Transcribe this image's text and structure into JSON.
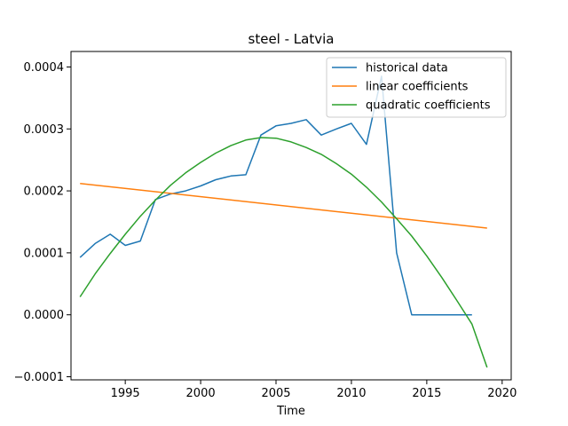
{
  "chart_data": {
    "type": "line",
    "title": "steel - Latvia",
    "xlabel": "Time",
    "ylabel": "",
    "xlim": [
      1991.4,
      2020.6
    ],
    "ylim": [
      -0.000105,
      0.000425
    ],
    "xticks": [
      1995,
      2000,
      2005,
      2010,
      2015,
      2020
    ],
    "yticks": [
      -0.0001,
      0.0,
      0.0001,
      0.0002,
      0.0003,
      0.0004
    ],
    "ytick_labels": [
      "−0.0001",
      "0.0000",
      "0.0001",
      "0.0002",
      "0.0003",
      "0.0004"
    ],
    "legend_position": "top-right",
    "grid": false,
    "series": [
      {
        "name": "historical data",
        "color": "#1f77b4",
        "x": [
          1992,
          1993,
          1994,
          1995,
          1996,
          1997,
          1998,
          1999,
          2000,
          2001,
          2002,
          2003,
          2004,
          2005,
          2006,
          2007,
          2008,
          2009,
          2010,
          2011,
          2012,
          2013,
          2014,
          2015,
          2016,
          2017,
          2018
        ],
        "y": [
          9.25e-05,
          0.000115,
          0.00013,
          0.000112,
          0.000119,
          0.000186,
          0.000195,
          0.0002,
          0.000208,
          0.000218,
          0.000224,
          0.000226,
          0.00029,
          0.000305,
          0.000309,
          0.000315,
          0.00029,
          0.0003,
          0.000309,
          0.000275,
          0.000385,
          0.0001,
          0.0,
          0.0,
          0.0,
          0.0,
          0.0
        ]
      },
      {
        "name": "linear coefficients",
        "color": "#ff7f0e",
        "x": [
          1992,
          2019
        ],
        "y": [
          0.000212,
          0.00014
        ]
      },
      {
        "name": "quadratic coefficients",
        "color": "#2ca02c",
        "x": [
          1992,
          1993,
          1994,
          1995,
          1996,
          1997,
          1998,
          1999,
          2000,
          2001,
          2002,
          2003,
          2004,
          2005,
          2006,
          2007,
          2008,
          2009,
          2010,
          2011,
          2012,
          2013,
          2014,
          2015,
          2016,
          2017,
          2018,
          2019
        ],
        "y": [
          2.9e-05,
          6.6e-05,
          9.9e-05,
          0.00013,
          0.000159,
          0.000185,
          0.000209,
          0.000229,
          0.000246,
          0.000261,
          0.000273,
          0.000282,
          0.000286,
          0.000285,
          0.000279,
          0.00027,
          0.000259,
          0.000244,
          0.000227,
          0.000206,
          0.000182,
          0.000155,
          0.000127,
          9.5e-05,
          6e-05,
          2.3e-05,
          -1.5e-05,
          -8.5e-05
        ]
      }
    ]
  }
}
